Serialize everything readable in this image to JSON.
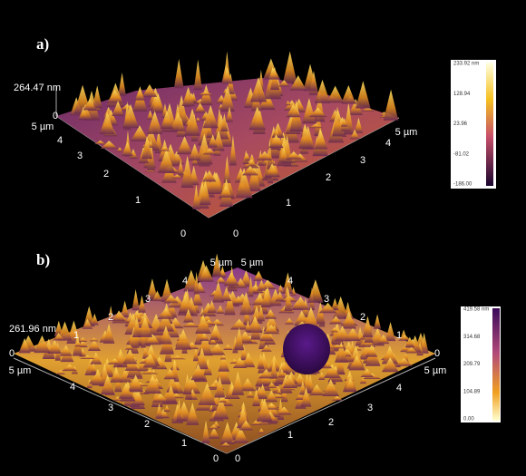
{
  "panels": [
    {
      "label": "a)",
      "z_max": "264.47 nm",
      "z_zero": "0",
      "left_axis": [
        "5 µm",
        "4",
        "3",
        "2",
        "1",
        "0"
      ],
      "right_axis": [
        "0",
        "1",
        "2",
        "3",
        "4",
        "5 µm"
      ],
      "colorbar": [
        "233.92 nm",
        "128.94",
        "23.96",
        "-81.02",
        "-186.00"
      ]
    },
    {
      "label": "b)",
      "z_max": "261.96 nm",
      "z_zero": "0",
      "left_axis": [
        "5 µm",
        "4",
        "3",
        "2",
        "1",
        "0"
      ],
      "right_axis": [
        "0",
        "1",
        "2",
        "3",
        "4",
        "5 µm"
      ],
      "back_left_axis": [
        "1",
        "2",
        "3",
        "4",
        "5 µm"
      ],
      "back_right_axis": [
        "5 µm",
        "4",
        "3",
        "2",
        "1",
        "0"
      ],
      "colorbar": [
        "419.58 nm",
        "314.68",
        "209.79",
        "104.89",
        "0.00"
      ]
    }
  ]
}
